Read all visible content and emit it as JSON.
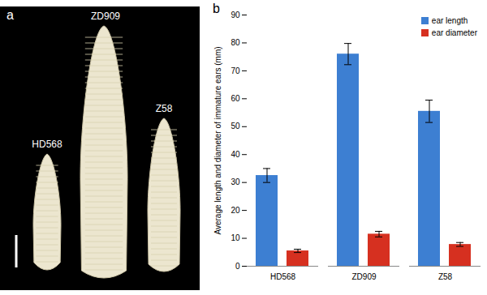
{
  "photo": {
    "panel_label": "a",
    "specimens": [
      "HD568",
      "ZD909",
      "Z58"
    ]
  },
  "chart_data": {
    "type": "bar",
    "panel_label": "b",
    "categories": [
      "HD568",
      "ZD909",
      "Z58"
    ],
    "series": [
      {
        "name": "ear length",
        "color": "#3d7fd2",
        "values": [
          32.5,
          76,
          55.5
        ],
        "errors": [
          2.5,
          3.8,
          4
        ]
      },
      {
        "name": "ear diameter",
        "color": "#d63020",
        "values": [
          5.5,
          11.5,
          7.8
        ],
        "errors": [
          0.6,
          1,
          0.7
        ]
      }
    ],
    "y_label": "Average length and diameter of immature ears (mm)",
    "ylim": [
      0,
      90
    ],
    "yticks": [
      0,
      10,
      20,
      30,
      40,
      50,
      60,
      70,
      80,
      90
    ],
    "grid": false,
    "legend": "top-right"
  }
}
